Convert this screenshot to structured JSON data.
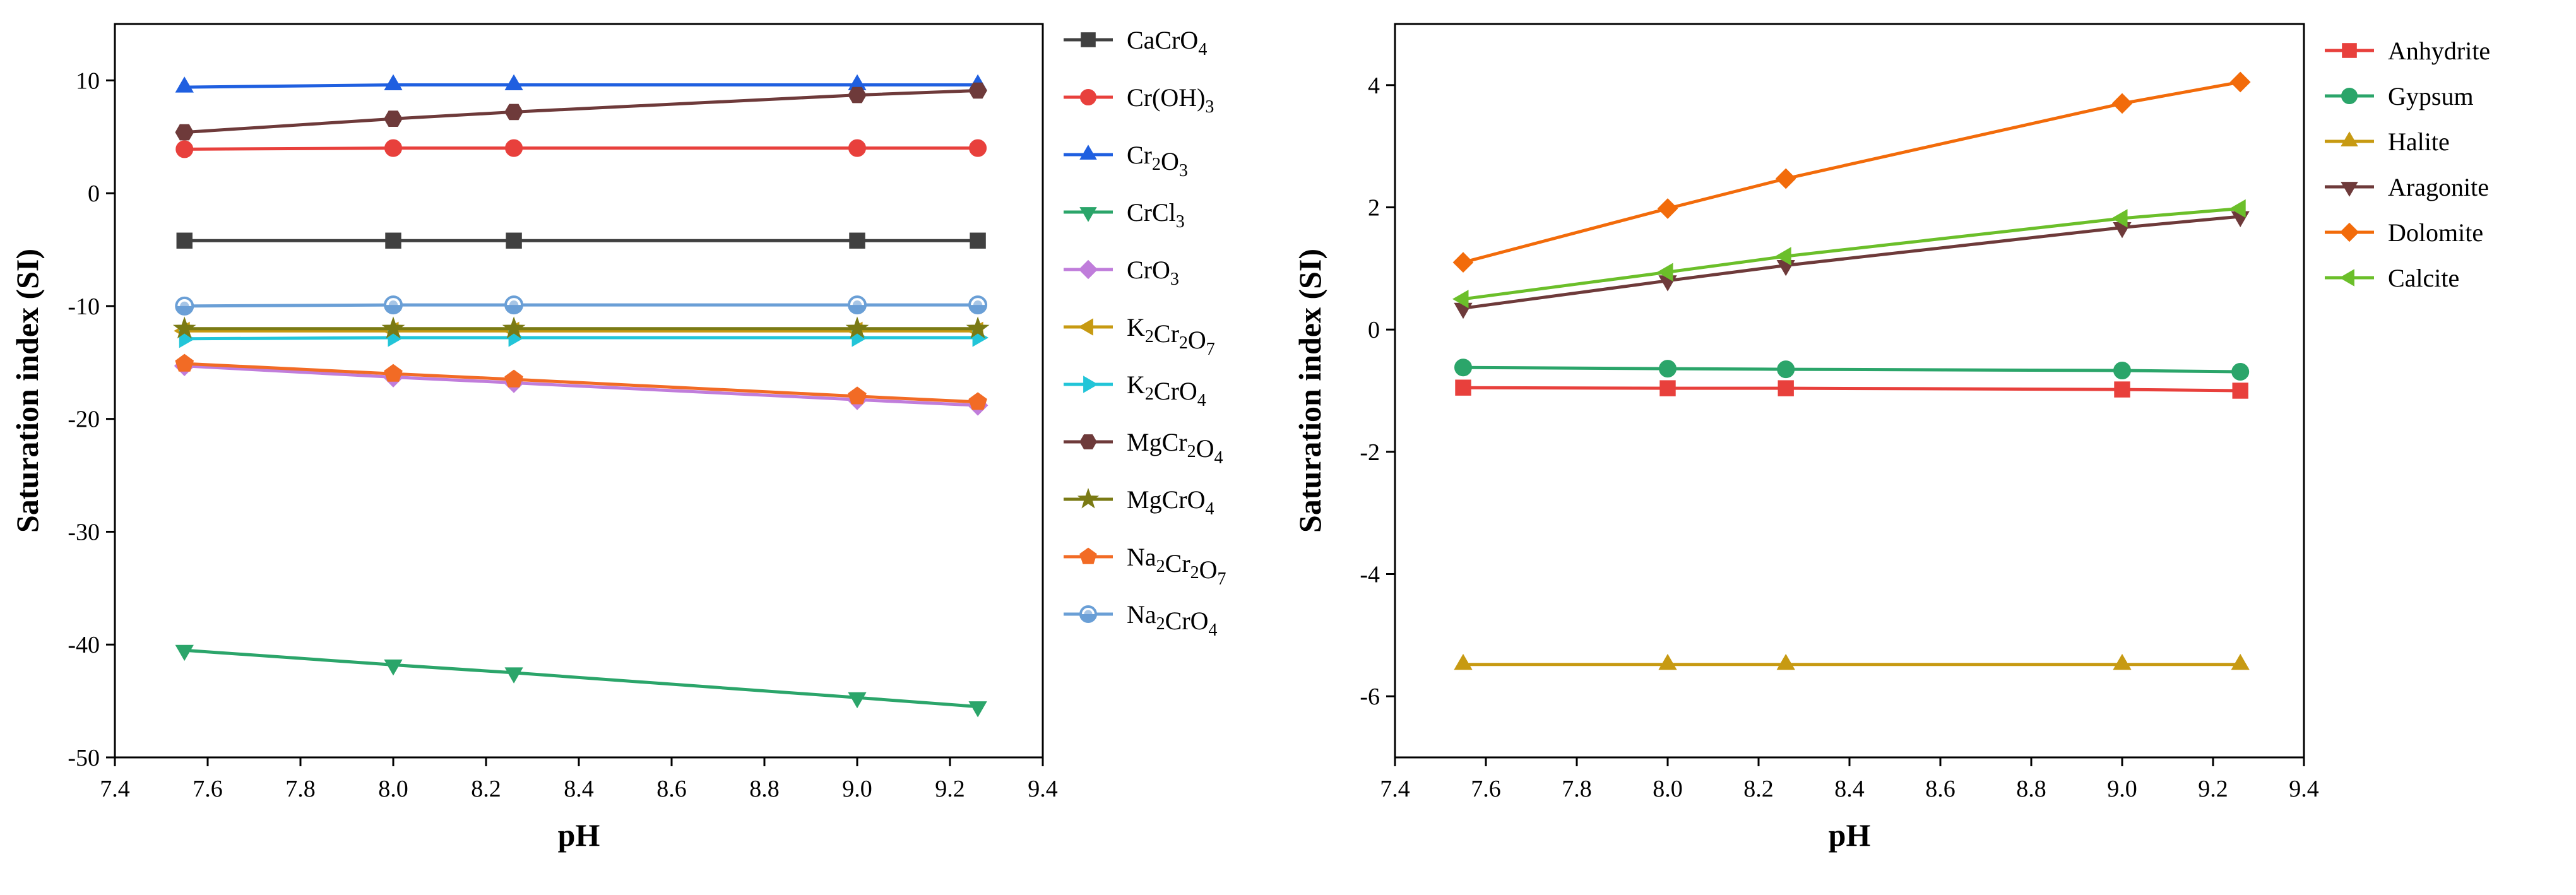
{
  "chart_data": [
    {
      "type": "line",
      "title": "",
      "xlabel": "pH",
      "ylabel": "Saturation index (SI)",
      "xlim": [
        7.4,
        9.4
      ],
      "ylim": [
        -50,
        15
      ],
      "xticks": [
        7.4,
        7.6,
        7.8,
        8.0,
        8.2,
        8.4,
        8.6,
        8.8,
        9.0,
        9.2,
        9.4
      ],
      "xtick_labels": [
        "7.4",
        "7.6",
        "7.8",
        "8.0",
        "8.2",
        "8.4",
        "8.6",
        "8.8",
        "9.0",
        "9.2",
        "9.4"
      ],
      "yticks": [
        -50,
        -40,
        -30,
        -20,
        -10,
        0,
        10
      ],
      "ytick_labels": [
        "-50",
        "-40",
        "-30",
        "-20",
        "-10",
        "0",
        "10"
      ],
      "legend_position": "right, outside",
      "x": [
        7.55,
        8.0,
        8.26,
        9.0,
        9.26
      ],
      "series": [
        {
          "name": "CaCrO4",
          "label": [
            [
              "CaCrO",
              ""
            ],
            [
              "4",
              "sub"
            ]
          ],
          "marker": "square",
          "color": "#404040",
          "values": [
            -4.2,
            -4.2,
            -4.2,
            -4.2,
            -4.2
          ]
        },
        {
          "name": "Cr(OH)3",
          "label": [
            [
              "Cr(OH)",
              ""
            ],
            [
              "3",
              "sub"
            ]
          ],
          "marker": "circle",
          "color": "#e8403c",
          "values": [
            3.9,
            4.0,
            4.0,
            4.0,
            4.0
          ]
        },
        {
          "name": "Cr2O3",
          "label": [
            [
              "Cr",
              ""
            ],
            [
              "2",
              "sub"
            ],
            [
              "O",
              ""
            ],
            [
              "3",
              "sub"
            ]
          ],
          "marker": "triangle-up",
          "color": "#1f5fe0",
          "values": [
            9.4,
            9.6,
            9.6,
            9.6,
            9.6
          ]
        },
        {
          "name": "CrCl3",
          "label": [
            [
              "CrCl",
              ""
            ],
            [
              "3",
              "sub"
            ]
          ],
          "marker": "triangle-down",
          "color": "#2ba56a",
          "values": [
            -40.5,
            -41.8,
            -42.5,
            -44.7,
            -45.5
          ]
        },
        {
          "name": "CrO3",
          "label": [
            [
              "CrO",
              ""
            ],
            [
              "3",
              "sub"
            ]
          ],
          "marker": "diamond",
          "color": "#c07ddb",
          "values": [
            -15.3,
            -16.3,
            -16.8,
            -18.3,
            -18.8
          ]
        },
        {
          "name": "K2Cr2O7",
          "label": [
            [
              "K",
              ""
            ],
            [
              "2",
              "sub"
            ],
            [
              "Cr",
              ""
            ],
            [
              "2",
              "sub"
            ],
            [
              "O",
              ""
            ],
            [
              "7",
              "sub"
            ]
          ],
          "marker": "triangle-left",
          "color": "#c79a12",
          "values": [
            -12.2,
            -12.2,
            -12.2,
            -12.2,
            -12.2
          ]
        },
        {
          "name": "K2CrO4",
          "label": [
            [
              "K",
              ""
            ],
            [
              "2",
              "sub"
            ],
            [
              "CrO",
              ""
            ],
            [
              "4",
              "sub"
            ]
          ],
          "marker": "triangle-right",
          "color": "#22c5d8",
          "values": [
            -12.9,
            -12.8,
            -12.8,
            -12.8,
            -12.8
          ]
        },
        {
          "name": "MgCr2O4",
          "label": [
            [
              "MgCr",
              ""
            ],
            [
              "2",
              "sub"
            ],
            [
              "O",
              ""
            ],
            [
              "4",
              "sub"
            ]
          ],
          "marker": "hex",
          "color": "#6e3a3a",
          "values": [
            5.4,
            6.6,
            7.2,
            8.7,
            9.1
          ]
        },
        {
          "name": "MgCrO4",
          "label": [
            [
              "MgCrO",
              ""
            ],
            [
              "4",
              "sub"
            ]
          ],
          "marker": "star",
          "color": "#7a7a14",
          "values": [
            -12.0,
            -12.0,
            -12.0,
            -12.0,
            -12.0
          ]
        },
        {
          "name": "Na2Cr2O7",
          "label": [
            [
              "Na",
              ""
            ],
            [
              "2",
              "sub"
            ],
            [
              "Cr",
              ""
            ],
            [
              "2",
              "sub"
            ],
            [
              "O",
              ""
            ],
            [
              "7",
              "sub"
            ]
          ],
          "marker": "pentagon",
          "color": "#f26b25",
          "values": [
            -15.1,
            -16.0,
            -16.5,
            -18.0,
            -18.5
          ]
        },
        {
          "name": "Na2CrO4",
          "label": [
            [
              "Na",
              ""
            ],
            [
              "2",
              "sub"
            ],
            [
              "CrO",
              ""
            ],
            [
              "4",
              "sub"
            ]
          ],
          "marker": "circle-half",
          "color": "#6a9fd6",
          "values": [
            -10.0,
            -9.9,
            -9.9,
            -9.9,
            -9.9
          ]
        }
      ]
    },
    {
      "type": "line",
      "title": "",
      "xlabel": "pH",
      "ylabel": "Saturation index (SI)",
      "xlim": [
        7.4,
        9.4
      ],
      "ylim": [
        -7,
        5
      ],
      "xticks": [
        7.4,
        7.6,
        7.8,
        8.0,
        8.2,
        8.4,
        8.6,
        8.8,
        9.0,
        9.2,
        9.4
      ],
      "xtick_labels": [
        "7.4",
        "7.6",
        "7.8",
        "8.0",
        "8.2",
        "8.4",
        "8.6",
        "8.8",
        "9.0",
        "9.2",
        "9.4"
      ],
      "yticks": [
        -6,
        -4,
        -2,
        0,
        2,
        4
      ],
      "ytick_labels": [
        "-6",
        "-4",
        "-2",
        "0",
        "2",
        "4"
      ],
      "legend_position": "right, outside",
      "x": [
        7.55,
        8.0,
        8.26,
        9.0,
        9.26
      ],
      "series": [
        {
          "name": "Anhydrite",
          "label": [
            [
              "Anhydrite",
              ""
            ]
          ],
          "marker": "square",
          "color": "#e8403c",
          "values": [
            -0.95,
            -0.96,
            -0.96,
            -0.98,
            -1.0
          ]
        },
        {
          "name": "Gypsum",
          "label": [
            [
              "Gypsum",
              ""
            ]
          ],
          "marker": "circle",
          "color": "#2ba56a",
          "values": [
            -0.62,
            -0.64,
            -0.65,
            -0.67,
            -0.69
          ]
        },
        {
          "name": "Halite",
          "label": [
            [
              "Halite",
              ""
            ]
          ],
          "marker": "triangle-up",
          "color": "#c79a12",
          "values": [
            -5.48,
            -5.48,
            -5.48,
            -5.48,
            -5.48
          ]
        },
        {
          "name": "Aragonite",
          "label": [
            [
              "Aragonite",
              ""
            ]
          ],
          "marker": "triangle-down",
          "color": "#6e3a3a",
          "values": [
            0.35,
            0.8,
            1.05,
            1.67,
            1.85
          ]
        },
        {
          "name": "Dolomite",
          "label": [
            [
              "Dolomite",
              ""
            ]
          ],
          "marker": "diamond",
          "color": "#f26b0a",
          "values": [
            1.1,
            1.98,
            2.47,
            3.7,
            4.05
          ]
        },
        {
          "name": "Calcite",
          "label": [
            [
              "Calcite",
              ""
            ]
          ],
          "marker": "triangle-left",
          "color": "#6bbf2a",
          "values": [
            0.5,
            0.94,
            1.2,
            1.82,
            1.98
          ]
        }
      ]
    }
  ]
}
